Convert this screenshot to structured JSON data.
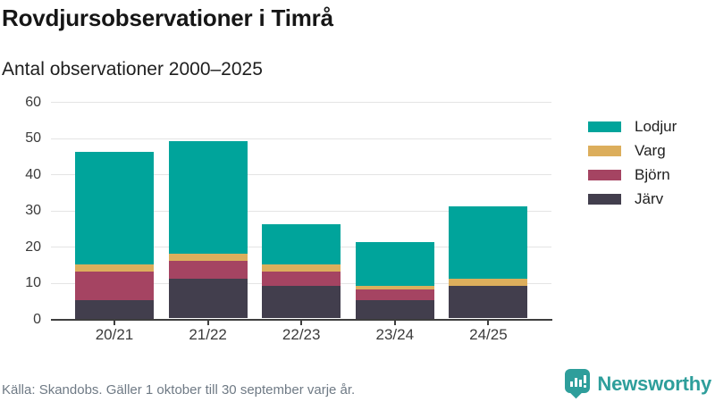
{
  "header": {
    "title": "Rovdjursobservationer i Timrå",
    "subtitle": "Antal observationer 2000–2025"
  },
  "footer": {
    "source": "Källa: Skandobs. Gäller 1 oktober till 30 september varje år.",
    "logo_text": "Newsworthy",
    "logo_icon": "bar-chart-speech-bubble-icon",
    "logo_color": "#2e9e9b"
  },
  "colors": {
    "background": "#ffffff",
    "gridline": "#e4e4e4",
    "axis": "#3e3e3e",
    "tick_label": "#3b3b3b",
    "title_text": "#161616",
    "source_text": "#6f7a85"
  },
  "chart_data": {
    "type": "bar",
    "stacked": true,
    "title": "Rovdjursobservationer i Timrå",
    "subtitle": "Antal observationer 2000–2025",
    "categories": [
      "20/21",
      "21/22",
      "22/23",
      "23/24",
      "24/25"
    ],
    "series": [
      {
        "name": "Lodjur",
        "color": "#00a49b",
        "values": [
          31,
          31,
          11,
          12,
          20
        ]
      },
      {
        "name": "Varg",
        "color": "#dcae5c",
        "values": [
          2,
          2,
          2,
          1,
          2
        ]
      },
      {
        "name": "Björn",
        "color": "#a54462",
        "values": [
          8,
          5,
          4,
          3,
          0
        ]
      },
      {
        "name": "Järv",
        "color": "#423e4d",
        "values": [
          5,
          11,
          9,
          5,
          9
        ]
      }
    ],
    "stack_order_bottom_to_top": [
      "Järv",
      "Björn",
      "Varg",
      "Lodjur"
    ],
    "totals": [
      46,
      49,
      26,
      21,
      31
    ],
    "ylim": [
      0,
      60
    ],
    "yticks": [
      0,
      10,
      20,
      30,
      40,
      50,
      60
    ],
    "xlabel": "",
    "ylabel": "",
    "grid": true,
    "legend_position": "right"
  }
}
